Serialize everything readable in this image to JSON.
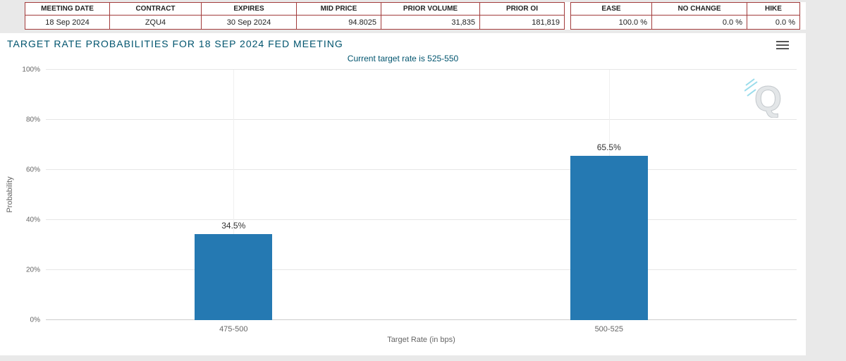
{
  "colors": {
    "accent_teal": "#00546e",
    "bar_blue": "#2579b2",
    "table_border_red": "#a23b3b",
    "gridline": "#e6e6e6"
  },
  "tables": {
    "contract": {
      "headers": [
        "MEETING DATE",
        "CONTRACT",
        "EXPIRES",
        "MID PRICE",
        "PRIOR VOLUME",
        "PRIOR OI"
      ],
      "values": [
        "18 Sep 2024",
        "ZQU4",
        "30 Sep 2024",
        "94.8025",
        "31,835",
        "181,819"
      ]
    },
    "moves": {
      "headers": [
        "EASE",
        "NO CHANGE",
        "HIKE"
      ],
      "values": [
        "100.0 %",
        "0.0 %",
        "0.0 %"
      ]
    }
  },
  "chart_data": {
    "type": "bar",
    "title": "TARGET RATE PROBABILITIES FOR 18 SEP 2024 FED MEETING",
    "subtitle": "Current target rate is 525-550",
    "categories": [
      "475-500",
      "500-525"
    ],
    "values": [
      34.5,
      65.5
    ],
    "data_labels": [
      "34.5%",
      "65.5%"
    ],
    "xlabel": "Target Rate (in bps)",
    "ylabel": "Probability",
    "ylim": [
      0,
      100
    ],
    "ytick_step": 20,
    "ytick_labels": [
      "0%",
      "20%",
      "40%",
      "60%",
      "80%",
      "100%"
    ],
    "grid": true,
    "legend": "none",
    "bar_color": "#2579b2",
    "watermark_letter": "Q"
  }
}
